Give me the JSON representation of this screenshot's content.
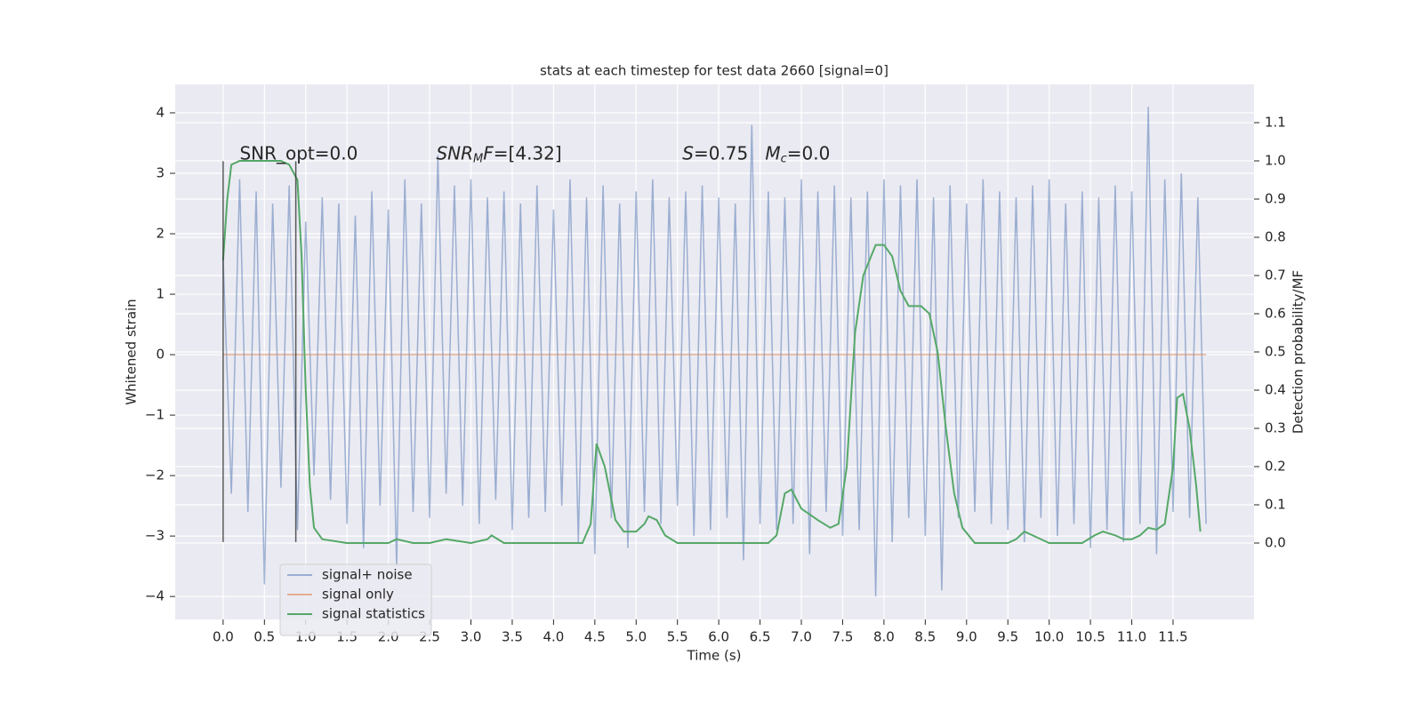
{
  "chart_data": {
    "type": "line",
    "title": "stats at each timestep for test data 2660 [signal=0]",
    "xlabel": "Time (s)",
    "ylabel": "Whitened strain",
    "y2label": "Detection probability/MF",
    "xlim": [
      -0.58,
      12.48
    ],
    "ylim": [
      -4.38,
      4.47
    ],
    "y2lim": [
      -0.2,
      1.2
    ],
    "xticks": [
      {
        "value": 0,
        "label": "0.0"
      },
      {
        "value": 0.5,
        "label": "0.5"
      },
      {
        "value": 1,
        "label": "1.0"
      },
      {
        "value": 1.5,
        "label": "1.5"
      },
      {
        "value": 2,
        "label": "2.0"
      },
      {
        "value": 2.5,
        "label": "2.5"
      },
      {
        "value": 3,
        "label": "3.0"
      },
      {
        "value": 3.5,
        "label": "3.5"
      },
      {
        "value": 4,
        "label": "4.0"
      },
      {
        "value": 4.5,
        "label": "4.5"
      },
      {
        "value": 5,
        "label": "5.0"
      },
      {
        "value": 5.5,
        "label": "5.5"
      },
      {
        "value": 6,
        "label": "6.0"
      },
      {
        "value": 6.5,
        "label": "6.5"
      },
      {
        "value": 7,
        "label": "7.0"
      },
      {
        "value": 7.5,
        "label": "7.5"
      },
      {
        "value": 8,
        "label": "8.0"
      },
      {
        "value": 8.5,
        "label": "8.5"
      },
      {
        "value": 9,
        "label": "9.0"
      },
      {
        "value": 9.5,
        "label": "9.5"
      },
      {
        "value": 10,
        "label": "10.0"
      },
      {
        "value": 10.5,
        "label": "10.5"
      },
      {
        "value": 11,
        "label": "11.0"
      },
      {
        "value": 11.5,
        "label": "11.5"
      }
    ],
    "yticks": [
      {
        "value": -4,
        "label": "−4"
      },
      {
        "value": -3,
        "label": "−3"
      },
      {
        "value": -2,
        "label": "−2"
      },
      {
        "value": -1,
        "label": "−1"
      },
      0,
      1,
      2,
      3,
      4
    ],
    "y2ticks": [
      {
        "value": 0,
        "label": "0.0"
      },
      {
        "value": 0.1,
        "label": "0.1"
      },
      {
        "value": 0.2,
        "label": "0.2"
      },
      {
        "value": 0.3,
        "label": "0.3"
      },
      {
        "value": 0.4,
        "label": "0.4"
      },
      {
        "value": 0.5,
        "label": "0.5"
      },
      {
        "value": 0.6,
        "label": "0.6"
      },
      {
        "value": 0.7,
        "label": "0.7"
      },
      {
        "value": 0.8,
        "label": "0.8"
      },
      {
        "value": 0.9,
        "label": "0.9"
      },
      {
        "value": 1,
        "label": "1.0"
      },
      {
        "value": 1.1,
        "label": "1.1"
      }
    ],
    "grid": true,
    "legend": "lower left",
    "series": [
      {
        "name": "signal+ noise",
        "color": "#4c72b0",
        "opacity": 0.5,
        "x": [
          0,
          0.1,
          0.2,
          0.3,
          0.4,
          0.5,
          0.6,
          0.7,
          0.8,
          0.9,
          1,
          1.1,
          1.2,
          1.3,
          1.4,
          1.5,
          1.6,
          1.7,
          1.8,
          1.9,
          2,
          2.1,
          2.2,
          2.3,
          2.4,
          2.5,
          2.6,
          2.7,
          2.8,
          2.9,
          3,
          3.1,
          3.2,
          3.3,
          3.4,
          3.5,
          3.6,
          3.7,
          3.8,
          3.9,
          4,
          4.1,
          4.2,
          4.3,
          4.4,
          4.5,
          4.6,
          4.7,
          4.8,
          4.9,
          5,
          5.1,
          5.2,
          5.3,
          5.4,
          5.5,
          5.6,
          5.7,
          5.8,
          5.9,
          6,
          6.1,
          6.2,
          6.3,
          6.4,
          6.5,
          6.6,
          6.7,
          6.8,
          6.9,
          7,
          7.1,
          7.2,
          7.3,
          7.4,
          7.5,
          7.6,
          7.7,
          7.8,
          7.9,
          8,
          8.1,
          8.2,
          8.3,
          8.4,
          8.5,
          8.6,
          8.7,
          8.8,
          8.9,
          9,
          9.1,
          9.2,
          9.3,
          9.4,
          9.5,
          9.6,
          9.7,
          9.8,
          9.9,
          10,
          10.1,
          10.2,
          10.3,
          10.4,
          10.5,
          10.6,
          10.7,
          10.8,
          10.9,
          11,
          11.1,
          11.2,
          11.3,
          11.4,
          11.5,
          11.6,
          11.7,
          11.8,
          11.9
        ],
        "values": [
          1.6,
          -2.3,
          2.9,
          -2.6,
          2.7,
          -3.8,
          2.5,
          -2.2,
          2.8,
          -2.9,
          2.2,
          -2.0,
          2.6,
          -2.4,
          2.5,
          -2.8,
          2.3,
          -3.2,
          2.7,
          -2.5,
          2.4,
          -3.5,
          2.9,
          -2.6,
          2.5,
          -2.7,
          3.3,
          -2.3,
          2.8,
          -2.5,
          2.9,
          -2.8,
          2.6,
          -2.4,
          2.7,
          -2.9,
          2.5,
          -2.7,
          2.8,
          -2.6,
          2.4,
          -2.5,
          2.9,
          -3.1,
          2.6,
          -3.3,
          2.8,
          -2.7,
          2.5,
          -3.2,
          2.7,
          -2.6,
          2.9,
          -2.8,
          2.6,
          -2.5,
          2.7,
          -3.0,
          2.8,
          -2.9,
          2.6,
          -2.7,
          2.5,
          -3.4,
          3.8,
          -2.8,
          2.7,
          -2.9,
          2.6,
          -2.8,
          2.9,
          -3.3,
          2.7,
          -2.6,
          2.8,
          -3.0,
          2.6,
          -2.9,
          2.7,
          -4.0,
          2.9,
          -3.1,
          2.8,
          -2.7,
          2.9,
          -3.0,
          2.6,
          -3.9,
          2.8,
          -2.7,
          2.5,
          -2.6,
          2.9,
          -2.8,
          2.7,
          -2.9,
          2.6,
          -3.1,
          2.8,
          -2.7,
          2.9,
          -3.0,
          2.5,
          -2.8,
          2.7,
          -3.2,
          2.6,
          -2.9,
          2.8,
          -3.1,
          2.7,
          -2.8,
          4.1,
          -3.3,
          2.9,
          -2.6,
          3.0,
          -2.7,
          2.6,
          -2.8
        ]
      },
      {
        "name": "signal only",
        "color": "#dd8452",
        "opacity": 0.6,
        "x": [
          0,
          11.9
        ],
        "values": [
          0,
          0
        ]
      },
      {
        "name": "signal statistics",
        "color": "#55a868",
        "opacity": 1,
        "axis": "y2",
        "x": [
          0,
          0.05,
          0.1,
          0.2,
          0.5,
          0.7,
          0.8,
          0.9,
          0.95,
          1,
          1.05,
          1.1,
          1.2,
          1.5,
          2,
          2.1,
          2.3,
          2.5,
          2.7,
          3,
          3.2,
          3.25,
          3.4,
          4,
          4.35,
          4.45,
          4.52,
          4.62,
          4.75,
          4.85,
          5,
          5.1,
          5.15,
          5.25,
          5.35,
          5.5,
          6,
          6.6,
          6.7,
          6.8,
          6.88,
          7,
          7.2,
          7.35,
          7.45,
          7.55,
          7.65,
          7.75,
          7.9,
          8,
          8.1,
          8.2,
          8.3,
          8.45,
          8.55,
          8.65,
          8.75,
          8.85,
          8.95,
          9.1,
          9.5,
          9.6,
          9.7,
          9.8,
          10,
          10.4,
          10.55,
          10.65,
          10.8,
          10.9,
          11,
          11.1,
          11.2,
          11.3,
          11.4,
          11.5,
          11.55,
          11.62,
          11.7,
          11.78,
          11.83
        ],
        "values": [
          0.74,
          0.9,
          0.99,
          1.0,
          1.0,
          1.0,
          0.99,
          0.95,
          0.75,
          0.4,
          0.15,
          0.04,
          0.01,
          0.0,
          0.0,
          0.01,
          0.0,
          0.0,
          0.01,
          0.0,
          0.01,
          0.02,
          0.0,
          0.0,
          0.0,
          0.05,
          0.26,
          0.2,
          0.06,
          0.03,
          0.03,
          0.05,
          0.07,
          0.06,
          0.02,
          0.0,
          0.0,
          0.0,
          0.02,
          0.13,
          0.14,
          0.09,
          0.06,
          0.04,
          0.05,
          0.2,
          0.55,
          0.7,
          0.78,
          0.78,
          0.75,
          0.66,
          0.62,
          0.62,
          0.6,
          0.5,
          0.3,
          0.13,
          0.04,
          0.0,
          0.0,
          0.01,
          0.03,
          0.02,
          0.0,
          0.0,
          0.02,
          0.03,
          0.02,
          0.01,
          0.01,
          0.02,
          0.04,
          0.035,
          0.05,
          0.2,
          0.38,
          0.39,
          0.3,
          0.15,
          0.03
        ]
      }
    ],
    "vlines": {
      "x": [
        0,
        0.88
      ],
      "ymin": -3.1,
      "ymax": 3.2,
      "color": "#333333"
    },
    "annotations": [
      {
        "x": 0.2,
        "y": 3.2,
        "parts": [
          {
            "text": "SNR_opt=0.0",
            "style": "normal"
          }
        ]
      },
      {
        "x": 2.58,
        "y": 3.2,
        "parts": [
          {
            "text": "SNR",
            "style": "italic"
          },
          {
            "text": "M",
            "style": "sub"
          },
          {
            "text": "F",
            "style": "italic"
          },
          {
            "text": "=[4.32]",
            "style": "normal"
          }
        ]
      },
      {
        "x": 5.56,
        "y": 3.2,
        "parts": [
          {
            "text": "S",
            "style": "italic"
          },
          {
            "text": "=0.75   ",
            "style": "normal"
          },
          {
            "text": "M",
            "style": "italic"
          },
          {
            "text": "c",
            "style": "sub"
          },
          {
            "text": "=0.0",
            "style": "normal"
          }
        ]
      }
    ]
  }
}
